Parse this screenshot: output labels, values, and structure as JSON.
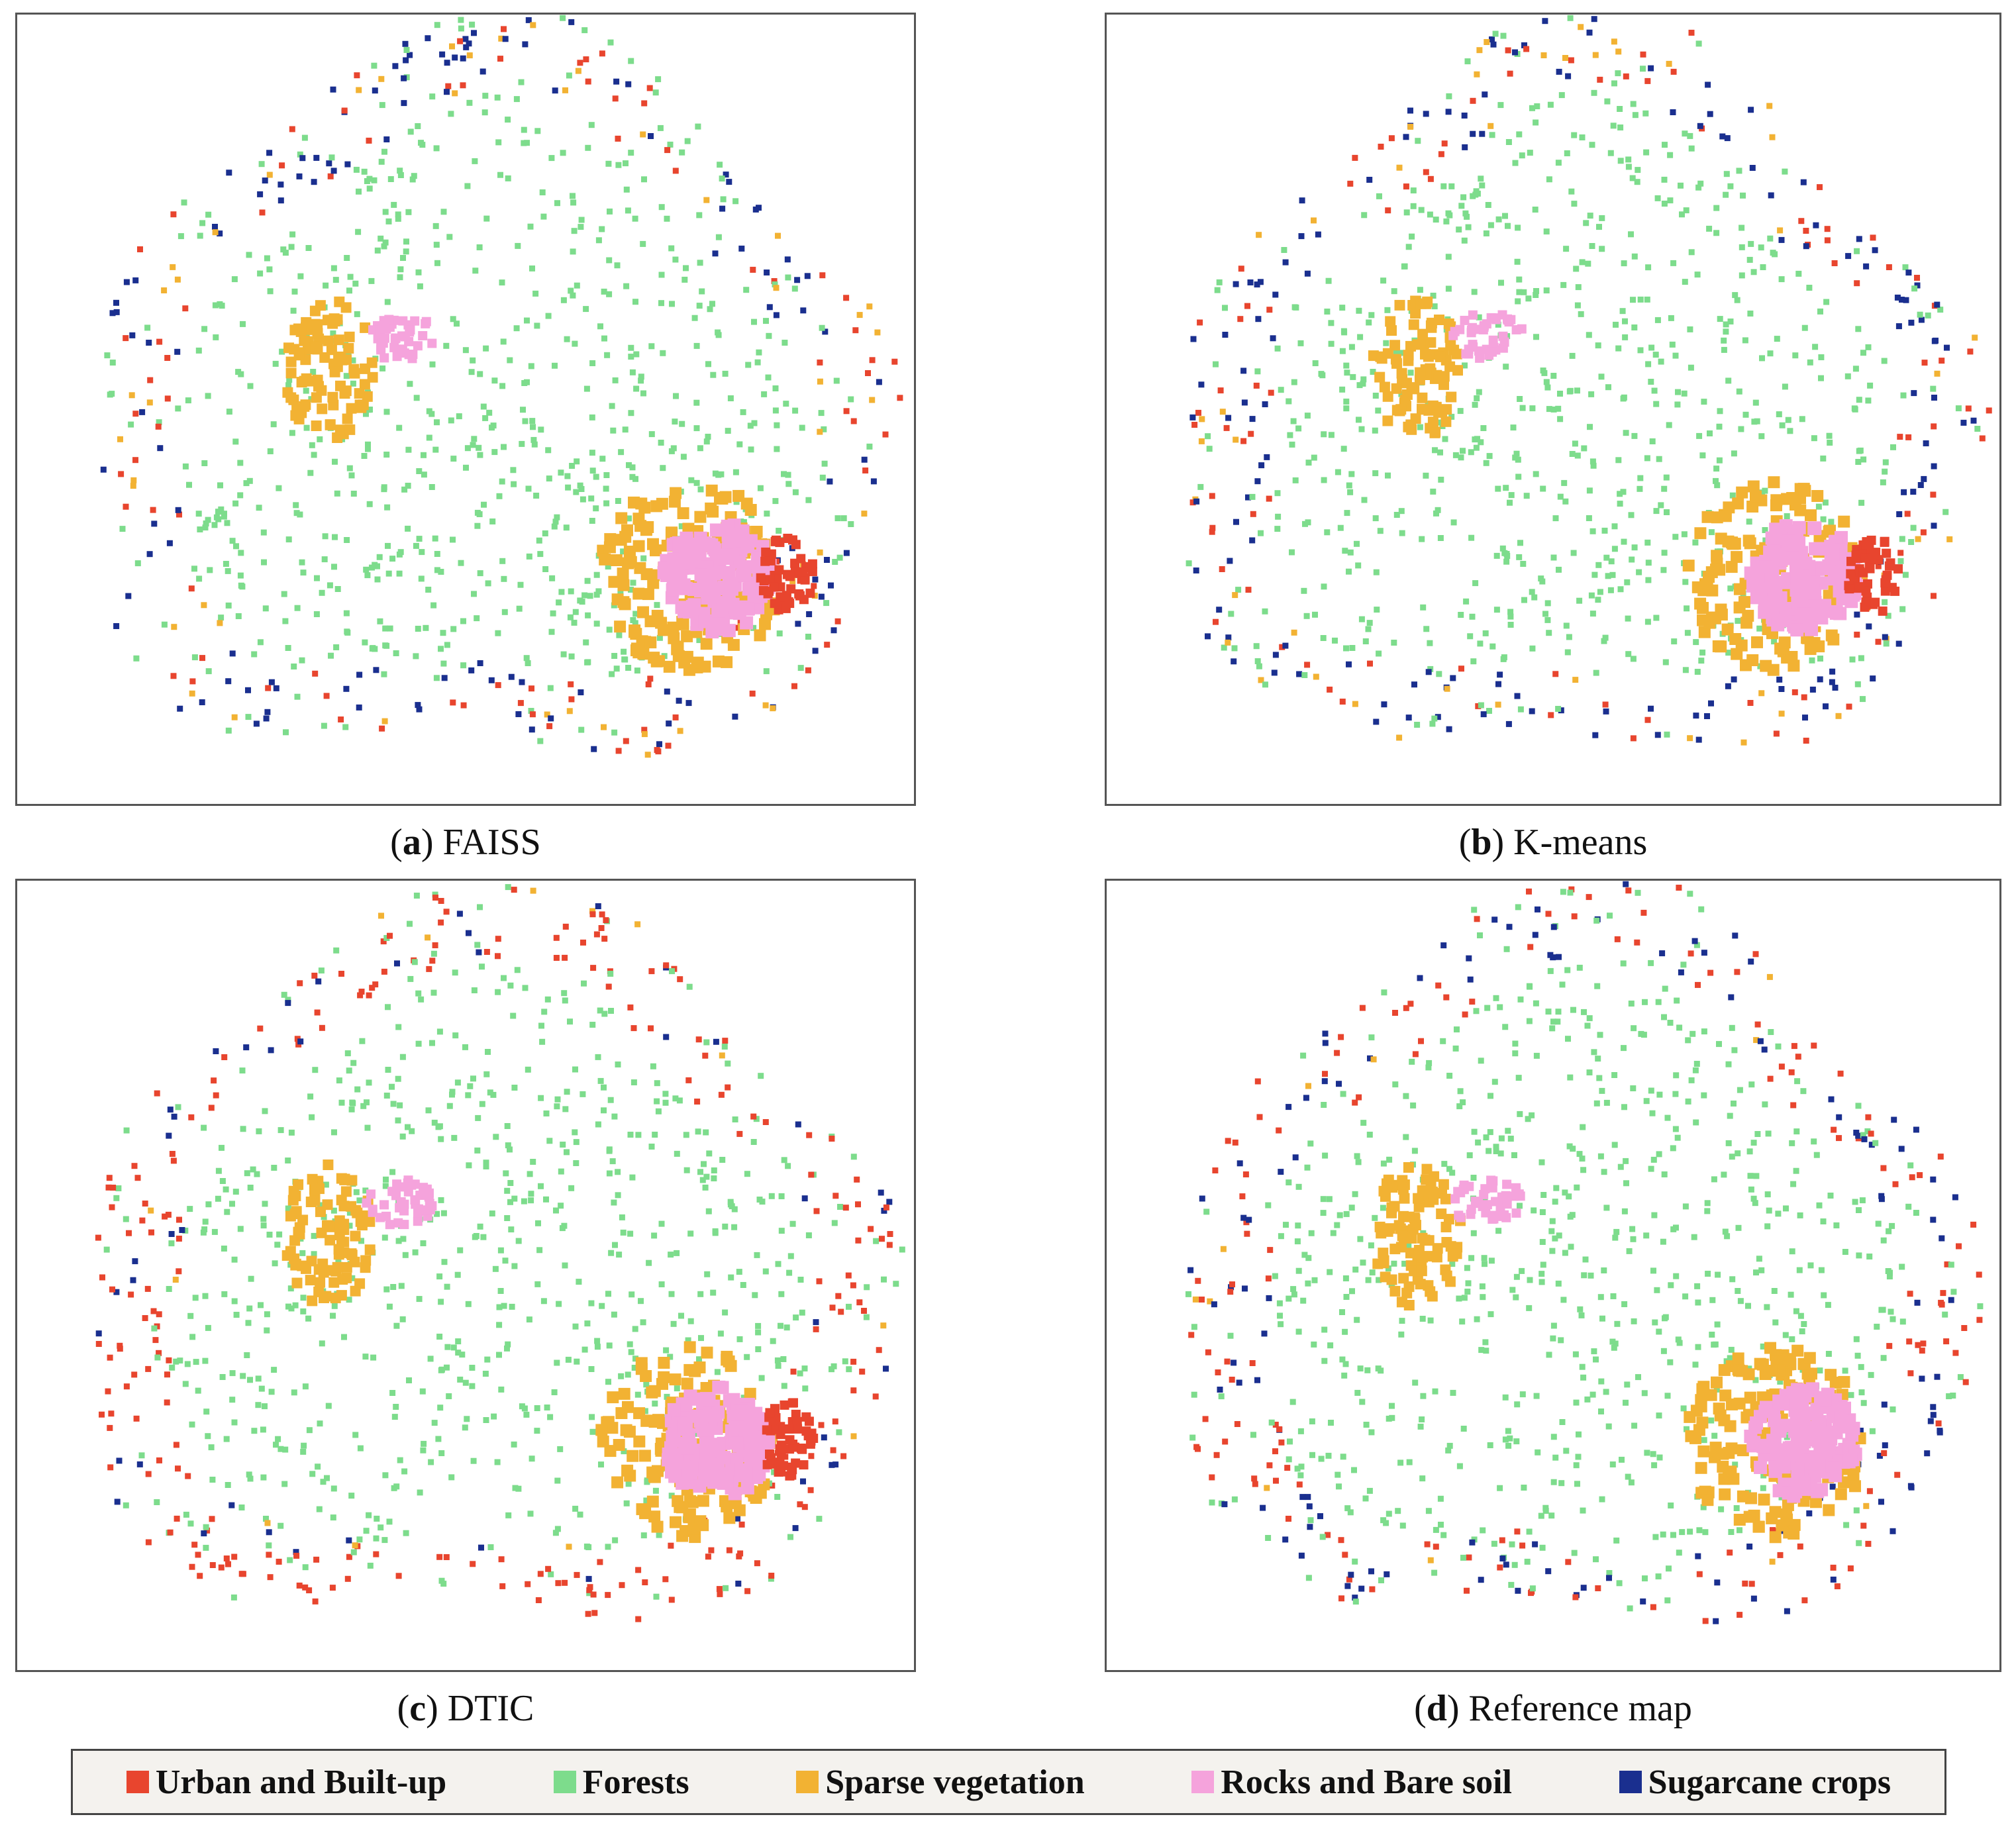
{
  "panels": [
    {
      "caption": "(a) FAISS"
    },
    {
      "caption": "(b) K-means"
    },
    {
      "caption": "(c) DTIC"
    },
    {
      "caption": "(d) Reference map"
    }
  ],
  "legend": [
    {
      "label": "Urban and Built-up",
      "color": "#e8452e"
    },
    {
      "label": "Forests",
      "color": "#7ddc8c"
    },
    {
      "label": "Sparse vegetation",
      "color": "#f2b233"
    },
    {
      "label": "Rocks and Bare soil",
      "color": "#f5a3dc"
    },
    {
      "label": "Sugarcane crops",
      "color": "#1a2f8f"
    }
  ]
}
